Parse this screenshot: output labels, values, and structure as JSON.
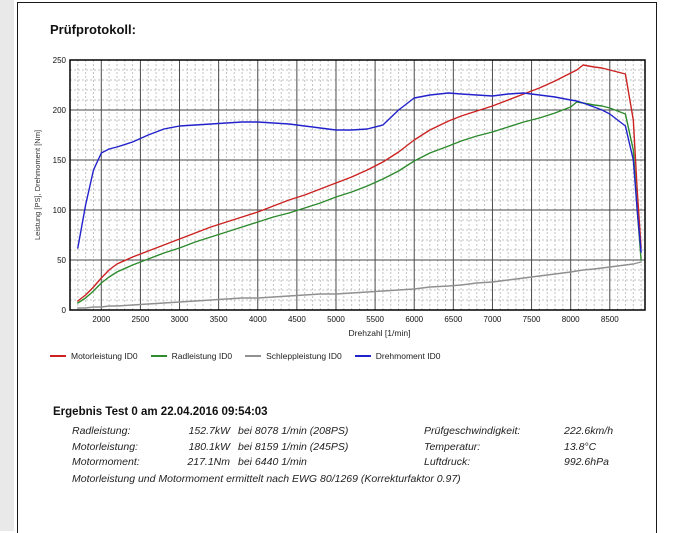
{
  "page": {
    "title": "Prüfprotokoll:"
  },
  "chart_data": {
    "type": "line",
    "title": "",
    "xlabel": "Drehzahl [1/min]",
    "ylabel": "Leistung [PS], Drehmoment [Nm]",
    "xlim": [
      1600,
      8950
    ],
    "ylim": [
      0,
      250
    ],
    "x_ticks": [
      2000,
      2500,
      3000,
      3500,
      4000,
      4500,
      5000,
      5500,
      6000,
      6500,
      7000,
      7500,
      8000,
      8500
    ],
    "y_ticks": [
      0,
      50,
      100,
      150,
      200,
      250
    ],
    "x_minor_step": 100,
    "y_minor_step": 10,
    "grid": true,
    "legend_position": "below",
    "x": [
      1700,
      1800,
      1900,
      2000,
      2100,
      2200,
      2400,
      2600,
      2800,
      3000,
      3200,
      3400,
      3600,
      3800,
      4000,
      4200,
      4400,
      4600,
      4800,
      5000,
      5200,
      5400,
      5600,
      5800,
      6000,
      6200,
      6440,
      6600,
      6800,
      7000,
      7200,
      7400,
      7600,
      7800,
      8000,
      8078,
      8159,
      8300,
      8400,
      8500,
      8600,
      8700,
      8800,
      8850,
      8900
    ],
    "series": [
      {
        "name": "Motorleistung ID0",
        "color": "#cc2222",
        "values": [
          9,
          15,
          23,
          32,
          40,
          46,
          53,
          59,
          65,
          71,
          77,
          83,
          88,
          93,
          98,
          104,
          110,
          115,
          121,
          127,
          133,
          140,
          148,
          158,
          170,
          180,
          189,
          194,
          199,
          204,
          210,
          216,
          222,
          229,
          237,
          240,
          245,
          243,
          242,
          240,
          238,
          236,
          190,
          120,
          62
        ]
      },
      {
        "name": "Radleistung ID0",
        "color": "#2e8b2e",
        "values": [
          7,
          12,
          19,
          27,
          33,
          38,
          45,
          51,
          57,
          62,
          68,
          73,
          78,
          83,
          88,
          93,
          97,
          102,
          107,
          113,
          118,
          124,
          131,
          139,
          149,
          157,
          164,
          169,
          174,
          178,
          183,
          188,
          192,
          197,
          203,
          208,
          207,
          205,
          204,
          202,
          199,
          196,
          160,
          100,
          50
        ]
      },
      {
        "name": "Schleppleistung ID0",
        "color": "#909090",
        "values": [
          2,
          2,
          3,
          3,
          4,
          4,
          5,
          6,
          7,
          8,
          9,
          10,
          11,
          12,
          12,
          13,
          14,
          15,
          16,
          16,
          17,
          18,
          19,
          20,
          21,
          23,
          24,
          25,
          27,
          28,
          30,
          32,
          34,
          36,
          38,
          39,
          40,
          41,
          42,
          43,
          44,
          45,
          46,
          47,
          48
        ]
      },
      {
        "name": "Drehmoment ID0",
        "color": "#2222cc",
        "values": [
          62,
          105,
          140,
          157,
          161,
          163,
          168,
          175,
          181,
          184,
          185,
          186,
          187,
          188,
          188,
          187,
          186,
          184,
          182,
          180,
          180,
          181,
          185,
          200,
          212,
          215,
          217,
          216,
          215,
          214,
          216,
          217,
          215,
          213,
          210,
          209,
          207,
          203,
          200,
          196,
          190,
          184,
          150,
          100,
          58
        ]
      }
    ]
  },
  "results": {
    "heading": "Ergebnis Test 0 am 22.04.2016 09:54:03",
    "rows": [
      {
        "label": "Radleistung:",
        "value": "152.7kW",
        "detail": "bei 8078 1/min (208PS)",
        "label2": "Prüfgeschwindigkeit:",
        "value2": "222.6km/h"
      },
      {
        "label": "Motorleistung:",
        "value": "180.1kW",
        "detail": "bei 8159 1/min (245PS)",
        "label2": "Temperatur:",
        "value2": "13.8°C"
      },
      {
        "label": "Motormoment:",
        "value": "217.1Nm",
        "detail": "bei 6440 1/min",
        "label2": "Luftdruck:",
        "value2": "992.6hPa"
      }
    ],
    "note": "Motorleistung und Motormoment ermittelt nach EWG 80/1269 (Korrekturfaktor 0.97)"
  }
}
